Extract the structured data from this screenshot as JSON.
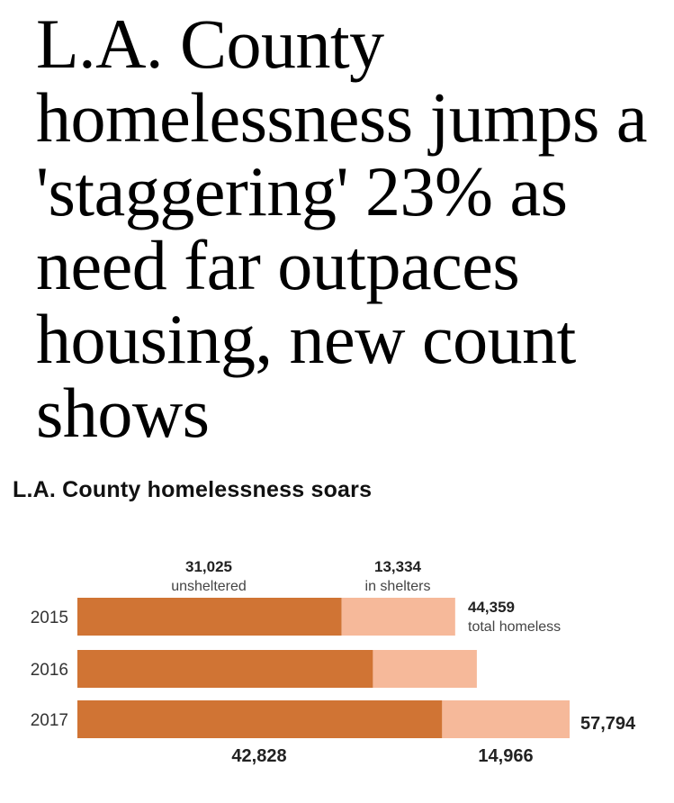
{
  "article": {
    "headline": "L.A. County homelessness jumps a 'staggering' 23% as need far outpaces housing, new count shows"
  },
  "colors": {
    "unsheltered": "#d07434",
    "sheltered": "#f6b99a"
  },
  "chart_data": {
    "type": "bar",
    "orientation": "horizontal",
    "stacked": true,
    "title": "L.A. County homelessness soars",
    "categories": [
      "2015",
      "2016",
      "2017"
    ],
    "series": [
      {
        "name": "unsheltered",
        "values": [
          31025,
          34700,
          42828
        ]
      },
      {
        "name": "in shelters",
        "values": [
          13334,
          12200,
          14966
        ]
      }
    ],
    "totals": [
      44359,
      46900,
      57794
    ],
    "annotations": {
      "top_unsheltered_value": "31,025",
      "top_unsheltered_label": "unsheltered",
      "top_sheltered_value": "13,334",
      "top_sheltered_label": "in shelters",
      "total_2015_value": "44,359",
      "total_2015_label": "total homeless",
      "total_2017_value": "57,794",
      "bottom_unsheltered_value": "42,828",
      "bottom_sheltered_value": "14,966"
    },
    "xlim": [
      0,
      57794
    ],
    "grid": false,
    "legend": "none"
  }
}
